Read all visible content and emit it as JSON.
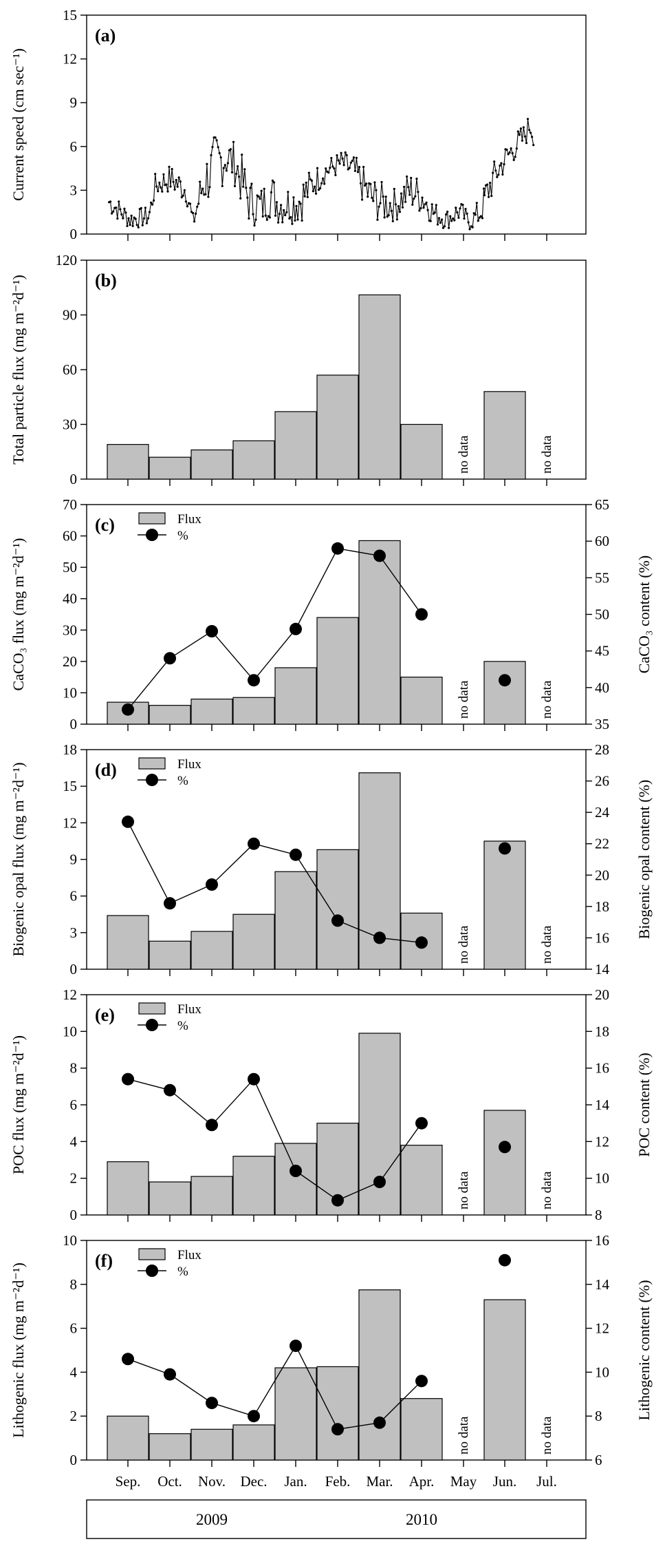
{
  "months": [
    "Sep.",
    "Oct.",
    "Nov.",
    "Dec.",
    "Jan.",
    "Feb.",
    "Mar.",
    "Apr.",
    "May",
    "Jun.",
    "Jul."
  ],
  "years": [
    "2009",
    "2010"
  ],
  "no_data_label": "no data",
  "legend": {
    "flux": "Flux",
    "percent": "%"
  },
  "colors": {
    "bar_fill": "#c0c0c0",
    "ink": "#000000"
  },
  "chart_data": [
    {
      "type": "line",
      "panel_label": "(a)",
      "ylabel": "Current speed (cm sec⁻¹)",
      "ylim": [
        0,
        15
      ],
      "yticks": [
        0,
        3,
        6,
        9,
        12,
        15
      ],
      "xlim": [
        0,
        11
      ],
      "x_desc": "time in months since start of Sep. 2009",
      "series": [
        {
          "name": "Current speed",
          "x": [
            0.05,
            0.55,
            1.0,
            1.15,
            1.5,
            1.9,
            2.05,
            2.3,
            2.6,
            2.85,
            3.05,
            3.2,
            3.4,
            3.7,
            3.9,
            4.1,
            4.4,
            4.6,
            4.9,
            5.2,
            5.6,
            5.9,
            6.3,
            6.6,
            6.9,
            7.2,
            7.5,
            7.8,
            8.1,
            8.4,
            8.65,
            8.9,
            9.1,
            9.3,
            9.55,
            9.75,
            9.95,
            10.1,
            10.2
          ],
          "values": [
            2.2,
            1.0,
            1.2,
            3.3,
            3.8,
            3.0,
            0.8,
            3.5,
            4.8,
            5.3,
            4.8,
            3.8,
            2.2,
            1.9,
            2.8,
            2.0,
            2.1,
            2.3,
            3.4,
            4.3,
            4.9,
            4.3,
            2.5,
            2.1,
            2.0,
            3.0,
            2.6,
            1.4,
            1.0,
            1.6,
            0.8,
            1.5,
            3.0,
            4.2,
            5.3,
            6.0,
            6.6,
            7.5,
            6.6
          ],
          "amplitude": [
            0.6,
            0.5,
            0.5,
            0.6,
            0.7,
            0.7,
            0.5,
            1.3,
            1.6,
            1.2,
            1.1,
            1.3,
            1.2,
            1.0,
            1.2,
            1.0,
            1.0,
            1.2,
            0.8,
            0.6,
            0.6,
            0.8,
            1.1,
            1.0,
            0.8,
            1.0,
            0.9,
            0.6,
            0.5,
            0.6,
            0.4,
            0.8,
            0.9,
            0.8,
            0.7,
            0.7,
            0.7,
            0.6,
            0.5
          ]
        }
      ]
    },
    {
      "type": "bar",
      "panel_label": "(b)",
      "ylabel": "Total particle flux (mg m⁻²d⁻¹)",
      "ylim": [
        0,
        120
      ],
      "yticks": [
        0,
        30,
        60,
        90,
        120
      ],
      "categories": [
        "Sep.",
        "Oct.",
        "Nov.",
        "Dec.",
        "Jan.",
        "Feb.",
        "Mar.",
        "Apr.",
        "May",
        "Jun.",
        "Jul."
      ],
      "values": [
        19,
        12,
        16,
        21,
        37,
        57,
        101,
        30,
        null,
        48,
        null
      ]
    },
    {
      "type": "bar+line",
      "panel_label": "(c)",
      "ylabel": "CaCO₃ flux (mg m⁻²d⁻¹)",
      "y2label": "CaCO₃ content (%)",
      "ylim": [
        0,
        70
      ],
      "yticks": [
        0,
        10,
        20,
        30,
        40,
        50,
        60,
        70
      ],
      "y2lim": [
        35,
        65
      ],
      "y2ticks": [
        35,
        40,
        45,
        50,
        55,
        60,
        65
      ],
      "categories": [
        "Sep.",
        "Oct.",
        "Nov.",
        "Dec.",
        "Jan.",
        "Feb.",
        "Mar.",
        "Apr.",
        "May",
        "Jun.",
        "Jul."
      ],
      "series": [
        {
          "name": "Flux",
          "axis": "left",
          "values": [
            7,
            6,
            8,
            8.5,
            18,
            34,
            58.5,
            15,
            null,
            20,
            null
          ]
        },
        {
          "name": "%",
          "axis": "right",
          "values": [
            37,
            44,
            47.7,
            41,
            48,
            59,
            58,
            50,
            null,
            41,
            null
          ]
        }
      ]
    },
    {
      "type": "bar+line",
      "panel_label": "(d)",
      "ylabel": "Biogenic opal flux (mg m⁻²d⁻¹)",
      "y2label": "Biogenic opal content (%)",
      "ylim": [
        0,
        18
      ],
      "yticks": [
        0,
        3,
        6,
        9,
        12,
        15,
        18
      ],
      "y2lim": [
        14,
        28
      ],
      "y2ticks": [
        14,
        16,
        18,
        20,
        22,
        24,
        26,
        28
      ],
      "categories": [
        "Sep.",
        "Oct.",
        "Nov.",
        "Dec.",
        "Jan.",
        "Feb.",
        "Mar.",
        "Apr.",
        "May",
        "Jun.",
        "Jul."
      ],
      "series": [
        {
          "name": "Flux",
          "axis": "left",
          "values": [
            4.4,
            2.3,
            3.1,
            4.5,
            8.0,
            9.8,
            16.1,
            4.6,
            null,
            10.5,
            null
          ]
        },
        {
          "name": "%",
          "axis": "right",
          "values": [
            23.4,
            18.2,
            19.4,
            22.0,
            21.3,
            17.1,
            16.0,
            15.7,
            null,
            21.7,
            null
          ]
        }
      ]
    },
    {
      "type": "bar+line",
      "panel_label": "(e)",
      "ylabel": "POC flux (mg m⁻²d⁻¹)",
      "y2label": "POC content (%)",
      "ylim": [
        0,
        12
      ],
      "yticks": [
        0,
        2,
        4,
        6,
        8,
        10,
        12
      ],
      "y2lim": [
        8,
        20
      ],
      "y2ticks": [
        8,
        10,
        12,
        14,
        16,
        18,
        20
      ],
      "categories": [
        "Sep.",
        "Oct.",
        "Nov.",
        "Dec.",
        "Jan.",
        "Feb.",
        "Mar.",
        "Apr.",
        "May",
        "Jun.",
        "Jul."
      ],
      "series": [
        {
          "name": "Flux",
          "axis": "left",
          "values": [
            2.9,
            1.8,
            2.1,
            3.2,
            3.9,
            5.0,
            9.9,
            3.8,
            null,
            5.7,
            null
          ]
        },
        {
          "name": "%",
          "axis": "right",
          "values": [
            15.4,
            14.8,
            12.9,
            15.4,
            10.4,
            8.8,
            9.8,
            13.0,
            null,
            11.7,
            null
          ]
        }
      ]
    },
    {
      "type": "bar+line",
      "panel_label": "(f)",
      "ylabel": "Lithogenic flux (mg m⁻²d⁻¹)",
      "y2label": "Lithogenic content (%)",
      "ylim": [
        0,
        10
      ],
      "yticks": [
        0,
        2,
        4,
        6,
        8,
        10
      ],
      "y2lim": [
        6,
        16
      ],
      "y2ticks": [
        6,
        8,
        10,
        12,
        14,
        16
      ],
      "categories": [
        "Sep.",
        "Oct.",
        "Nov.",
        "Dec.",
        "Jan.",
        "Feb.",
        "Mar.",
        "Apr.",
        "May",
        "Jun.",
        "Jul."
      ],
      "series": [
        {
          "name": "Flux",
          "axis": "left",
          "values": [
            2.0,
            1.2,
            1.4,
            1.6,
            4.2,
            4.25,
            7.75,
            2.8,
            null,
            7.3,
            null
          ]
        },
        {
          "name": "%",
          "axis": "right",
          "values": [
            10.6,
            9.9,
            8.6,
            8.0,
            11.2,
            7.4,
            7.7,
            9.6,
            null,
            15.1,
            null
          ]
        }
      ]
    }
  ]
}
